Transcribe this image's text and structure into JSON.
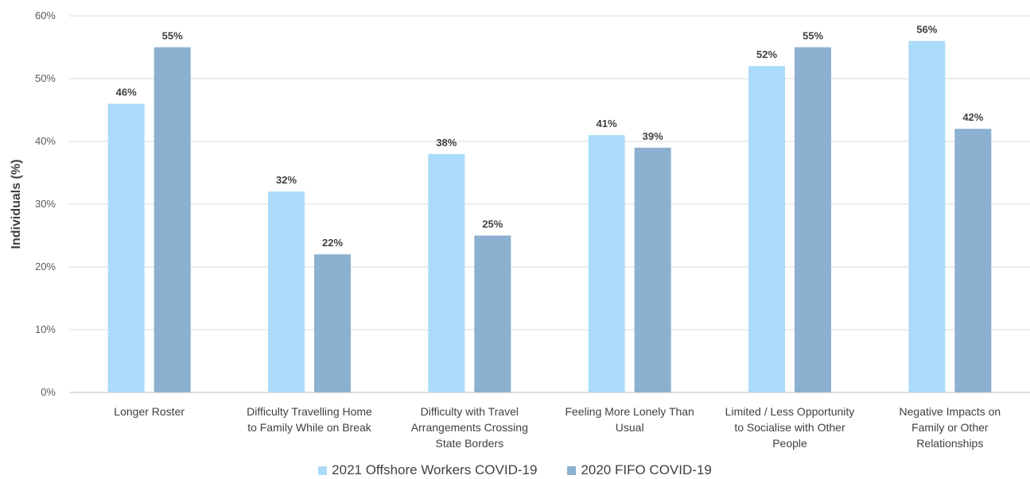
{
  "chart_data": {
    "type": "bar",
    "title": "",
    "xlabel": "",
    "ylabel": "Individuals (%)",
    "ylim": [
      0,
      60
    ],
    "yticks": [
      "0%",
      "10%",
      "20%",
      "30%",
      "40%",
      "50%",
      "60%"
    ],
    "grid": true,
    "legend_position": "bottom",
    "categories": [
      [
        "Longer Roster"
      ],
      [
        "Difficulty Travelling Home",
        "to Family While on Break"
      ],
      [
        "Difficulty with Travel",
        "Arrangements Crossing",
        "State Borders"
      ],
      [
        "Feeling More Lonely Than",
        "Usual"
      ],
      [
        "Limited / Less Opportunity",
        "to Socialise with Other",
        "People"
      ],
      [
        "Negative Impacts on",
        "Family or Other",
        "Relationships"
      ]
    ],
    "series": [
      {
        "name": "2021 Offshore Workers COVID-19",
        "color": "#aadcfa",
        "values": [
          46,
          32,
          38,
          41,
          52,
          56
        ]
      },
      {
        "name": "2020 FIFO COVID-19",
        "color": "#8cb0d0",
        "values": [
          55,
          22,
          25,
          39,
          55,
          42
        ]
      }
    ]
  }
}
